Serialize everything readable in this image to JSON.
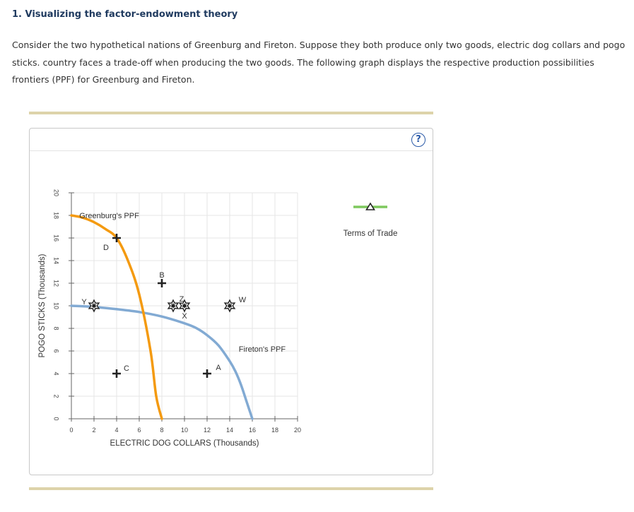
{
  "question": {
    "title": "1. Visualizing the factor-endowment theory",
    "text": "Consider the two hypothetical nations of Greenburg and Fireton. Suppose they both produce only two goods, electric dog collars and pogo sticks. country faces a trade-off when producing the two goods. The following graph displays the respective production possibilities frontiers (PPF) for Greenburg and Fireton."
  },
  "help_icon": "?",
  "colors": {
    "greenburg": "#f49a10",
    "fireton": "#82aad3",
    "terms_of_trade": "#7ec85e",
    "grid": "#e6e6e6",
    "rule": "#ddd3aa"
  },
  "legend": {
    "terms_of_trade": "Terms of Trade"
  },
  "chart_data": {
    "type": "line",
    "xlabel": "ELECTRIC DOG COLLARS (Thousands)",
    "ylabel": "POGO STICKS (Thousands)",
    "xlim": [
      0,
      20
    ],
    "ylim": [
      0,
      20
    ],
    "x_ticks": [
      0,
      2,
      4,
      6,
      8,
      10,
      12,
      14,
      16,
      18,
      20
    ],
    "y_ticks": [
      0,
      2,
      4,
      6,
      8,
      10,
      12,
      14,
      16,
      18,
      20
    ],
    "grid": true,
    "series": [
      {
        "name": "Greenburg's PPF",
        "points": [
          [
            0,
            18
          ],
          [
            1,
            17.8
          ],
          [
            2,
            17.4
          ],
          [
            3,
            16.8
          ],
          [
            4,
            16
          ],
          [
            5,
            14
          ],
          [
            6,
            11
          ],
          [
            7,
            6
          ],
          [
            7.5,
            2
          ],
          [
            8,
            0
          ]
        ]
      },
      {
        "name": "Fireton's PPF",
        "points": [
          [
            0,
            10
          ],
          [
            2,
            9.9
          ],
          [
            4,
            9.7
          ],
          [
            6,
            9.45
          ],
          [
            8,
            9.05
          ],
          [
            10,
            8.45
          ],
          [
            11,
            8.05
          ],
          [
            12,
            7.4
          ],
          [
            13,
            6.5
          ],
          [
            14,
            5.1
          ],
          [
            14.5,
            4.2
          ],
          [
            15,
            3
          ],
          [
            15.5,
            1.5
          ],
          [
            16,
            0
          ]
        ]
      }
    ],
    "points": [
      {
        "label": "D",
        "x": 4,
        "y": 16,
        "marker": "plus"
      },
      {
        "label": "B",
        "x": 8,
        "y": 12,
        "marker": "plus"
      },
      {
        "label": "C",
        "x": 4,
        "y": 4,
        "marker": "plus"
      },
      {
        "label": "A",
        "x": 12,
        "y": 4,
        "marker": "plus"
      },
      {
        "label": "Y",
        "x": 2,
        "y": 10,
        "marker": "star"
      },
      {
        "label": "X",
        "x": 10,
        "y": 10,
        "marker": "star"
      },
      {
        "label": "Z",
        "x": 9,
        "y": 10,
        "marker": "star"
      },
      {
        "label": "W",
        "x": 14,
        "y": 10,
        "marker": "star"
      }
    ]
  }
}
